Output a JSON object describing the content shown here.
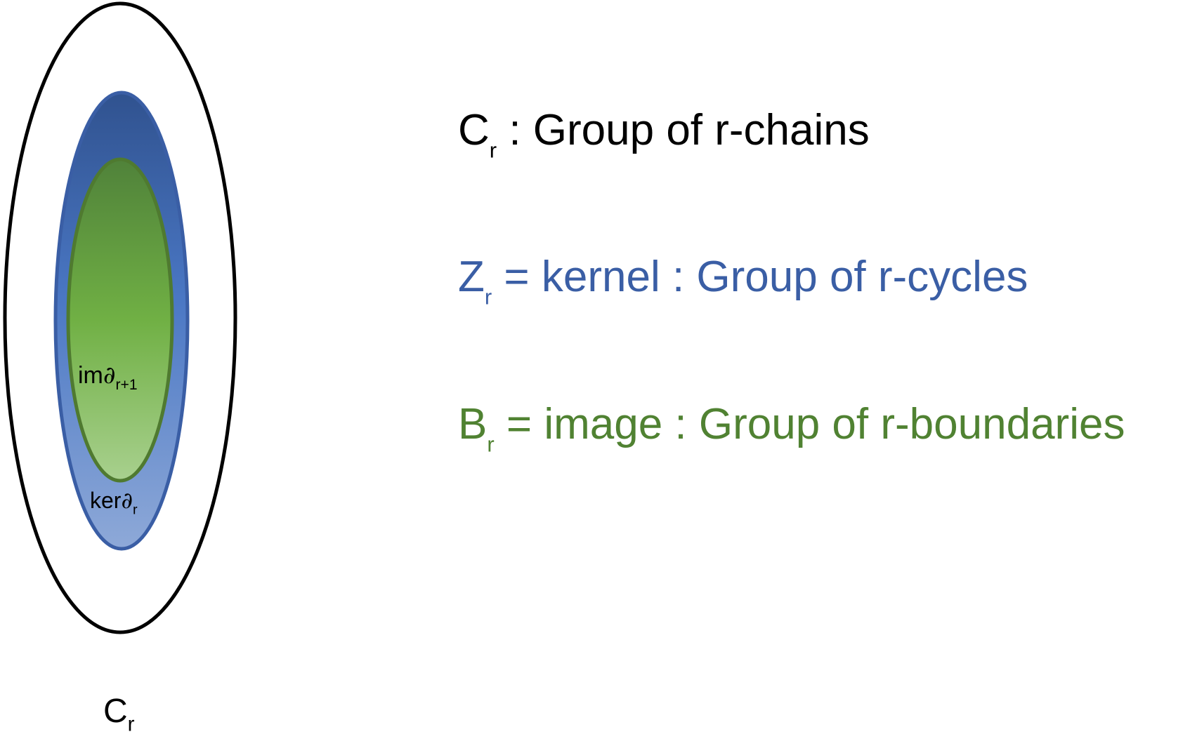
{
  "diagram": {
    "outer_label": {
      "base": "C",
      "sub": "r"
    },
    "middle_label": {
      "prefix": "ker",
      "symbol": "∂",
      "sub": "r"
    },
    "inner_label": {
      "prefix": "im",
      "symbol": "∂",
      "sub": "r+1"
    }
  },
  "legend": [
    {
      "symbol": "C",
      "sub": "r",
      "text": " : Group of r-chains",
      "color": "#000000"
    },
    {
      "symbol": "Z",
      "sub": "r",
      "text": " = kernel : Group of r-cycles",
      "color": "#3a5ea5"
    },
    {
      "symbol": "B",
      "sub": "r",
      "text": " = image : Group of r-boundaries",
      "color": "#508232"
    }
  ],
  "colors": {
    "outline": "#000000",
    "blue_top": "#30528f",
    "blue_bottom": "#8ea9d8",
    "blue_stroke": "#3a5ea5",
    "green_top": "#50823a",
    "green_bottom": "#a8d08e",
    "green_stroke": "#4f7a30"
  }
}
